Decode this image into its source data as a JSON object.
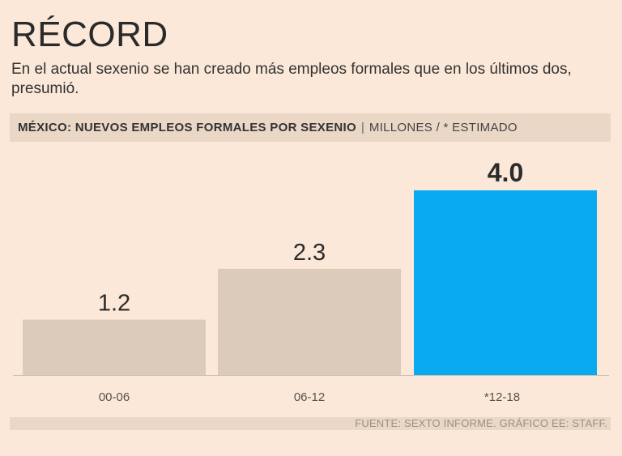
{
  "title": "RÉCORD",
  "subtitle": "En el actual sexenio se han creado más empleos formales que en los últimos dos, presumió.",
  "header": {
    "main": "MÉXICO: NUEVOS EMPLEOS FORMALES POR SEXENIO",
    "separator": "|",
    "units": "MILLONES / * ESTIMADO"
  },
  "source": "FUENTE: SEXTO INFORME. GRÁFICO EE: STAFF.",
  "colors": {
    "background": "#fbe8d8",
    "bar_default": "#dccbbb",
    "bar_highlight": "#0aaaf0",
    "band": "#ead7c6"
  },
  "chart_data": {
    "type": "bar",
    "title": "MÉXICO: NUEVOS EMPLEOS FORMALES POR SEXENIO",
    "xlabel": "",
    "ylabel": "MILLONES",
    "categories": [
      "00-06",
      "06-12",
      "*12-18"
    ],
    "values": [
      1.2,
      2.3,
      4.0
    ],
    "labels": [
      "1.2",
      "2.3",
      "4.0"
    ],
    "highlight_index": 2,
    "ylim": [
      0,
      4.0
    ],
    "grid": false
  }
}
